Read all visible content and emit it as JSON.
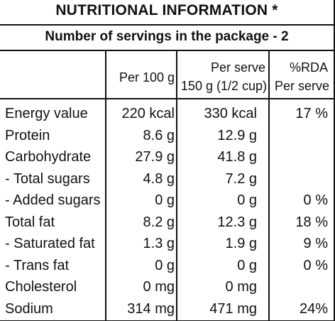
{
  "title": "NUTRITIONAL INFORMATION *",
  "servings_line": "Number of servings in the package - 2",
  "columns": {
    "per100": "Per 100 g",
    "perserve_l1": "Per serve",
    "perserve_l2": "150 g (1/2 cup)",
    "rda_l1": "%RDA",
    "rda_l2": "Per serve"
  },
  "rows": [
    {
      "name": "Energy value",
      "per100": "220 kcal",
      "perserve": "330 kcal",
      "rda": "17 %"
    },
    {
      "name": "Protein",
      "per100": "8.6 g",
      "perserve": "12.9 g",
      "rda": ""
    },
    {
      "name": "Carbohydrate",
      "per100": "27.9 g",
      "perserve": "41.8 g",
      "rda": ""
    },
    {
      "name": " - Total sugars",
      "per100": "4.8 g",
      "perserve": "7.2 g",
      "rda": ""
    },
    {
      "name": " - Added sugars",
      "per100": "0 g",
      "perserve": "0 g",
      "rda": "0 %"
    },
    {
      "name": "Total fat",
      "per100": "8.2 g",
      "perserve": "12.3 g",
      "rda": "18 %"
    },
    {
      "name": " - Saturated fat",
      "per100": "1.3 g",
      "perserve": "1.9 g",
      "rda": "9 %"
    },
    {
      "name": " - Trans fat",
      "per100": "0 g",
      "perserve": "0 g",
      "rda": "0 %"
    },
    {
      "name": "Cholesterol",
      "per100": "0 mg",
      "perserve": "0 mg",
      "rda": ""
    },
    {
      "name": "Sodium",
      "per100": "314 mg",
      "perserve": "471 mg",
      "rda": "24%"
    }
  ]
}
